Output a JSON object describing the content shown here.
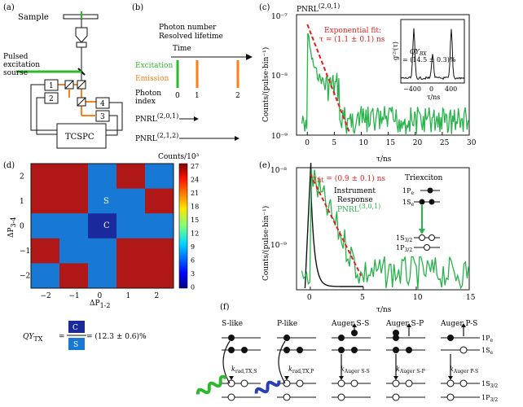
{
  "panel_labels": {
    "a": "(a)",
    "b": "(b)",
    "c": "(c)",
    "d": "(d)",
    "e": "(e)",
    "f": "(f)"
  },
  "panel_a": {
    "sample": "Sample",
    "laser_line1": "Pulsed",
    "laser_line2": "excitation",
    "laser_line3": "sourse",
    "det1": "1",
    "det2": "2",
    "det3": "3",
    "det4": "4",
    "tcspc": "TCSPC",
    "colors": {
      "excitation": "#2eb82e",
      "emission": "#ff7f1a"
    }
  },
  "panel_b": {
    "title_line1": "Photon number",
    "title_line2": "Resolved lifetime",
    "time": "Time",
    "excitation": "Excitation",
    "emission": "Emission",
    "photon_line1": "Photon",
    "photon_line2": "index",
    "idx0": "0",
    "idx1": "1",
    "idx2": "2",
    "pnrl1": "PNRL",
    "pnrl1_sup": "(2,0,1)",
    "pnrl2": "PNRL",
    "pnrl2_sup": "(2,1,2)"
  },
  "panel_c": {
    "title": "PNRL",
    "title_sup": "(2,0,1)",
    "fit_line1": "Exponential fit:",
    "fit_line2": "τ = (1.1 ± 0.1) ns",
    "ylabel": "Counts/(pulse·bin⁻¹)",
    "xlabel": "τ/ns",
    "yticks": [
      "10⁻⁷",
      "10⁻⁸",
      "10⁻⁹"
    ],
    "xticks": [
      "0",
      "5",
      "10",
      "15",
      "20",
      "25",
      "30"
    ],
    "inset_qy": "QY",
    "inset_qy_sub": "BX",
    "inset_qy_val": " = (14.5 ± 0.3)%",
    "inset_ylabel": "g⁽²⁾(τ)",
    "inset_xlabel": "τ/ns",
    "inset_xticks": [
      "−400",
      "0",
      "400"
    ]
  },
  "panel_d": {
    "ylabel": "ΔP",
    "ylabel_sub": "3-4",
    "xlabel": "ΔP",
    "xlabel_sub": "1-2",
    "cbar_title": "Counts/10³",
    "cbar_ticks": [
      "27",
      "24",
      "21",
      "18",
      "15",
      "12",
      "9",
      "6",
      "3",
      "0"
    ],
    "xticks": [
      "−2",
      "−1",
      "0",
      "1",
      "2"
    ],
    "yticks": [
      "2",
      "1",
      "0",
      "−1",
      "−2"
    ],
    "s_label": "S",
    "c_label": "C",
    "qy_lhs": "QY",
    "qy_lhs_sub": "TX",
    "qy_rhs": " = (12.3 ± 0.6)%",
    "grid": [
      [
        "r",
        "r",
        "b",
        "r",
        "b"
      ],
      [
        "r",
        "r",
        "b",
        "b",
        "r"
      ],
      [
        "b",
        "b",
        "d",
        "b",
        "b"
      ],
      [
        "r",
        "b",
        "b",
        "r",
        "r"
      ],
      [
        "b",
        "r",
        "b",
        "r",
        "r"
      ]
    ],
    "grid_colors": {
      "r": "#b01818",
      "b": "#1779d4",
      "d": "#1a2a9c"
    }
  },
  "panel_e": {
    "fit_label": "τ",
    "fit_sub": "fit",
    "fit_val": " = (0.9 ± 0.1) ns",
    "legend_line1": "Instrument",
    "legend_line2": "Response",
    "legend_pnrl": "PNRL",
    "legend_pnrl_sup": "(3,0,1)",
    "triexciton": "Triexciton",
    "lvl_1pe": "1P",
    "lvl_1pe_sub": "e",
    "lvl_1se": "1S",
    "lvl_1se_sub": "e",
    "lvl_1s32": "1S",
    "lvl_1s32_sub": "3/2",
    "lvl_1p32": "1P",
    "lvl_1p32_sub": "3/2",
    "ylabel": "Counts/(pulse·bin⁻¹)",
    "xlabel": "τ/ns",
    "yticks": [
      "10⁻⁸",
      "10⁻⁹"
    ],
    "xticks": [
      "0",
      "5",
      "10",
      "15"
    ]
  },
  "panel_f": {
    "col1": "S-like",
    "col2": "P-like",
    "col3": "Auger S-S",
    "col4": "Auger S-P",
    "col5": "Auger P-S",
    "k1": "k",
    "k1_sub": "rad,TX,S",
    "k2": "k",
    "k2_sub": "rad,TX,P",
    "k3": "k",
    "k3_sub": "Auger S-S",
    "k4": "k",
    "k4_sub": "Auger S-P",
    "k5": "k",
    "k5_sub": "Auger P-S",
    "lvl1": "1P",
    "lvl1_sub": "e",
    "lvl2": "1S",
    "lvl2_sub": "e",
    "lvl3": "1S",
    "lvl3_sub": "3/2",
    "lvl4": "1P",
    "lvl4_sub": "3/2"
  }
}
